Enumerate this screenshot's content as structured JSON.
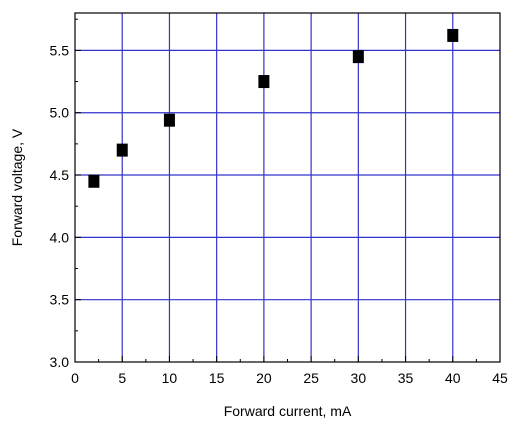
{
  "chart_data": {
    "type": "scatter",
    "title": "",
    "xlabel": "Forward current, mA",
    "ylabel": "Forward voltage, V",
    "xlim": [
      0,
      45
    ],
    "ylim": [
      3.0,
      5.8
    ],
    "x_ticks": [
      "0",
      "5",
      "10",
      "15",
      "20",
      "25",
      "30",
      "35",
      "40",
      "45"
    ],
    "y_ticks": [
      "3.0",
      "3.5",
      "4.0",
      "4.5",
      "5.0",
      "5.5"
    ],
    "grid": true,
    "legend": "none",
    "series": [
      {
        "x": [
          2,
          5,
          10,
          20,
          30,
          40
        ],
        "y": [
          4.45,
          4.7,
          4.94,
          5.25,
          5.45,
          5.62
        ]
      }
    ],
    "colors": {
      "grid": "#3333cc",
      "marker": "#000000",
      "axis": "#000000"
    },
    "marker": "filled-square"
  }
}
